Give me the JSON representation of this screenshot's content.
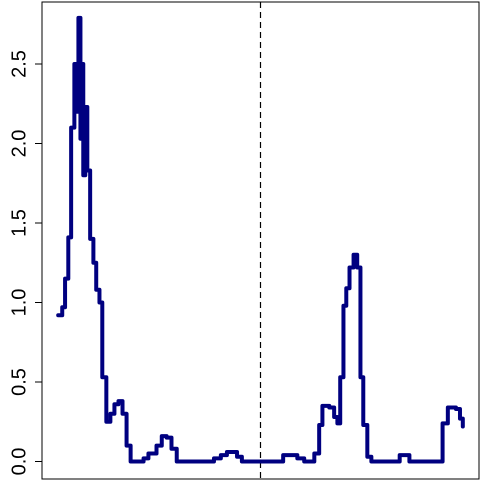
{
  "chart_data": {
    "type": "line",
    "step": true,
    "x": [
      0,
      1,
      1.7,
      2.5,
      3.2,
      4,
      4.5,
      5,
      5.5,
      5.7,
      6.2,
      6.7,
      7.2,
      7.9,
      8.7,
      9.4,
      10.2,
      10.9,
      11.9,
      12.9,
      13.9,
      14.9,
      15.9,
      16.9,
      17.9,
      21.1,
      22.3,
      24.3,
      25.6,
      26.8,
      28,
      29.3,
      36.7,
      38.5,
      40.2,
      41.7,
      43.2,
      44.2,
      45.4,
      54.6,
      55.6,
      57.6,
      59.1,
      60.8,
      63.3,
      64.5,
      65.3,
      67,
      68.2,
      69,
      69.7,
      70.5,
      71.2,
      72,
      73,
      73.9,
      74.7,
      75.4,
      76.4,
      77.4,
      83.9,
      84.4,
      86.4,
      86.8,
      94.5,
      95,
      96.3,
      98.3,
      99.3,
      100
    ],
    "series": [
      {
        "color": "#000080",
        "values": [
          0.92,
          0.97,
          1.15,
          1.41,
          2.1,
          2.5,
          2.2,
          2.79,
          2.03,
          2.5,
          1.8,
          2.23,
          1.83,
          1.4,
          1.25,
          1.08,
          1.0,
          0.53,
          0.25,
          0.3,
          0.36,
          0.38,
          0.3,
          0.1,
          0.0,
          0.02,
          0.05,
          0.1,
          0.16,
          0.15,
          0.08,
          0.0,
          0.0,
          0.02,
          0.04,
          0.06,
          0.06,
          0.03,
          0.0,
          0.0,
          0.04,
          0.04,
          0.02,
          0.0,
          0.05,
          0.23,
          0.35,
          0.34,
          0.28,
          0.24,
          0.53,
          0.98,
          1.09,
          1.22,
          1.3,
          1.22,
          0.53,
          0.23,
          0.03,
          0.0,
          0.0,
          0.04,
          0.04,
          0.0,
          0.0,
          0.24,
          0.34,
          0.33,
          0.27,
          0.22
        ]
      }
    ],
    "xlim": [
      -4,
      104
    ],
    "ylim": [
      -0.11,
      2.89
    ],
    "yticks": [
      {
        "value": 0,
        "label": "0.0"
      },
      0.5,
      {
        "value": 1,
        "label": "1.0"
      },
      1.5,
      {
        "value": 2,
        "label": "2.0"
      },
      2.5
    ],
    "vline": 50
  }
}
